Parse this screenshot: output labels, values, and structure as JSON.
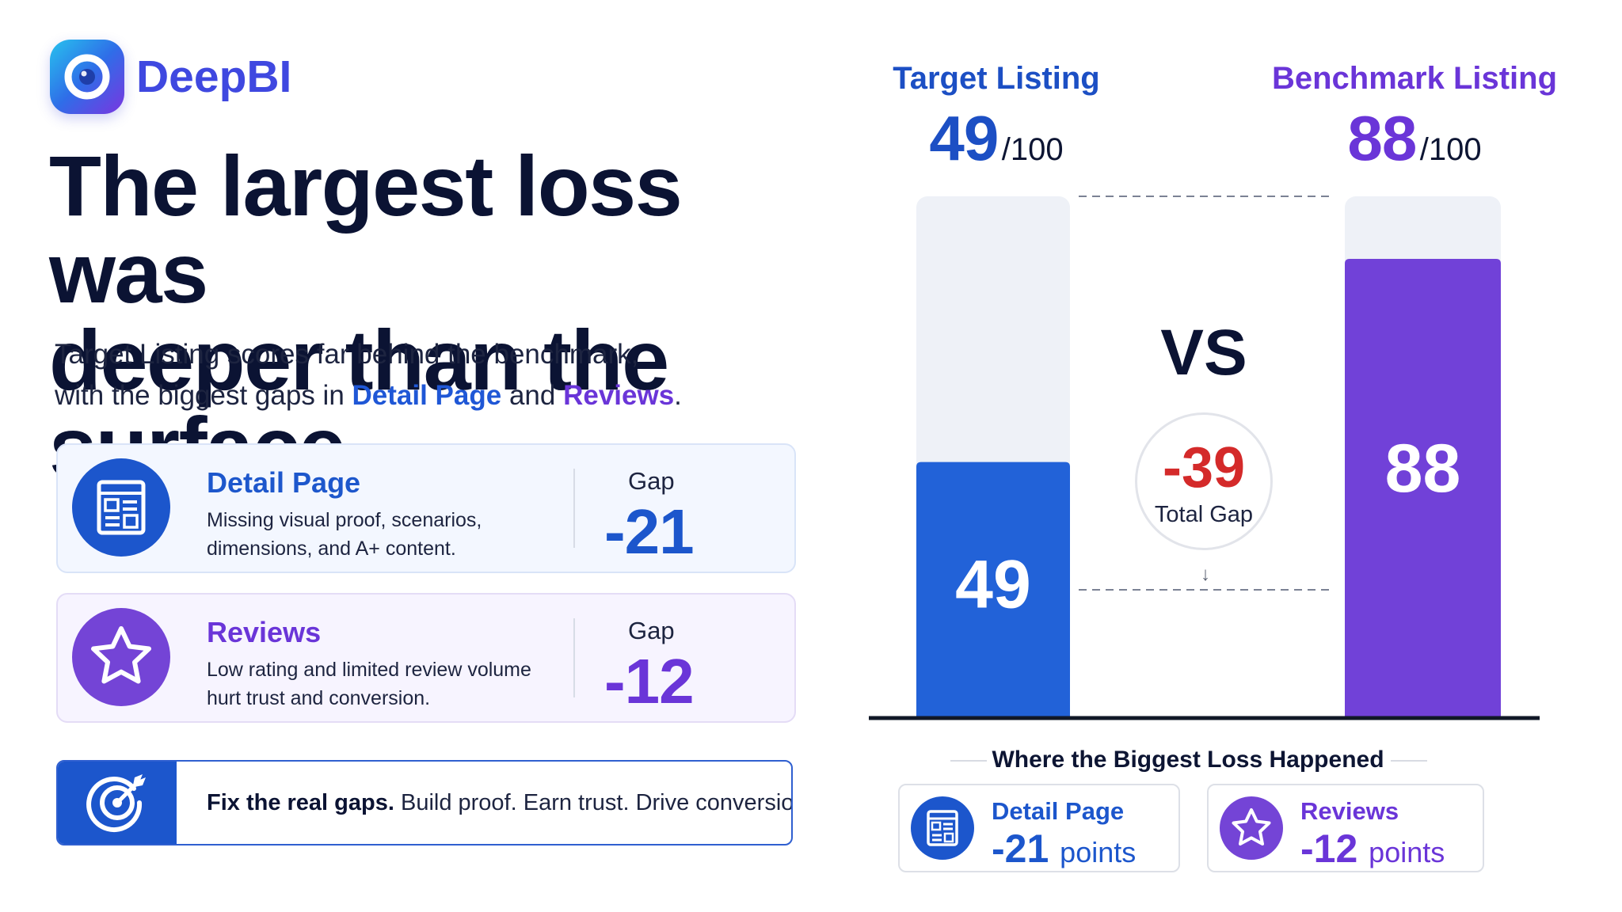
{
  "brand": {
    "name": "DeepBI"
  },
  "headline": {
    "line1": "The largest loss was",
    "line2": "deeper than the surface"
  },
  "subtitle": {
    "line1": "Target Listing scores far behind the benchmark,",
    "line2_prefix": "with the biggest gaps in ",
    "highlight1": "Detail Page",
    "line2_mid": " and ",
    "highlight2": "Reviews",
    "line2_end": "."
  },
  "cards": [
    {
      "title": "Detail Page",
      "desc_line1": "Missing visual proof, scenarios,",
      "desc_line2": "dimensions, and A+ content.",
      "gap_label": "Gap",
      "gap_value": "-21",
      "icon": "document-icon"
    },
    {
      "title": "Reviews",
      "desc_line1": "Low rating and limited review volume",
      "desc_line2": "hurt trust and conversion.",
      "gap_label": "Gap",
      "gap_value": "-12",
      "icon": "star-icon"
    }
  ],
  "cta": {
    "bold": "Fix the real gaps.",
    "rest": " Build proof. Earn trust. Drive conversions.",
    "icon": "target-icon"
  },
  "chart_data": {
    "type": "bar",
    "categories": [
      "Target Listing",
      "Benchmark Listing"
    ],
    "values": [
      49,
      88
    ],
    "max": 100,
    "denominator_label": "/100",
    "colors": [
      "#2262d8",
      "#7141d8"
    ],
    "ylim": [
      0,
      100
    ],
    "vs_label": "VS",
    "total_gap": {
      "value": "-39",
      "label": "Total Gap"
    },
    "breakdown_title": "Where the Biggest Loss Happened",
    "breakdown": [
      {
        "name": "Detail Page",
        "value": "-21",
        "unit": "points",
        "icon": "document-icon"
      },
      {
        "name": "Reviews",
        "value": "-12",
        "unit": "points",
        "icon": "star-icon"
      }
    ]
  }
}
